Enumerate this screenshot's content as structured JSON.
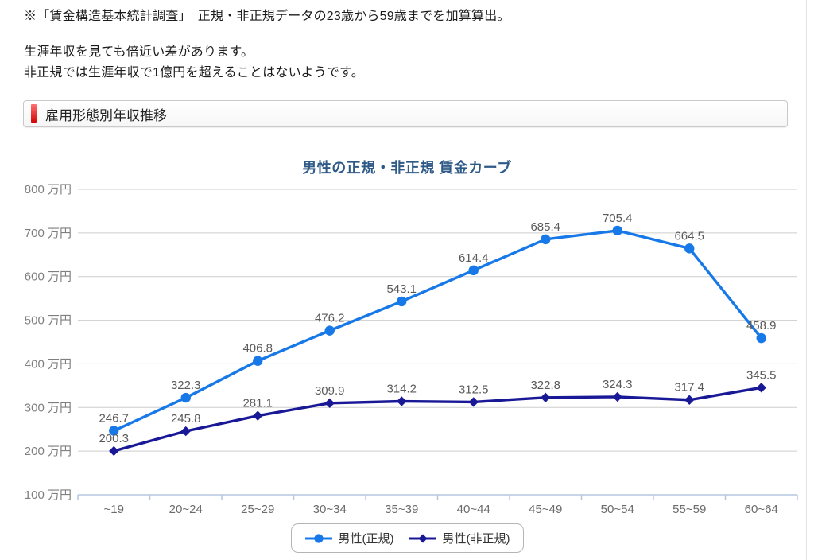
{
  "page": {
    "note": "※「賃金構造基本統計調査」　正規・非正規データの23歳から59歳までを加算算出。",
    "callout_line1": "生涯年収を見ても倍近い差があります。",
    "callout_line2": "非正規では生涯年収で1億円を超えることはないようです。",
    "section_title": "雇用形態別年収推移"
  },
  "colors": {
    "accent_red": "#cf0000",
    "title_blue": "#2f5a87",
    "grid": "#cdcdcd",
    "axis": "#b6c7dd",
    "tick_label": "#7f7f7f",
    "x_label": "#6b6b6b",
    "data_label": "#5a5a5a"
  },
  "chart_data": {
    "type": "line",
    "title": "男性の正規・非正規 賃金カーブ",
    "categories": [
      "~19",
      "20~24",
      "25~29",
      "30~34",
      "35~39",
      "40~44",
      "45~49",
      "50~54",
      "55~59",
      "60~64"
    ],
    "series": [
      {
        "name": "男性(正規)",
        "marker": "circle",
        "color": "#1778e8",
        "values": [
          246.7,
          322.3,
          406.8,
          476.2,
          543.1,
          614.4,
          685.4,
          705.4,
          664.5,
          458.9
        ]
      },
      {
        "name": "男性(非正規)",
        "marker": "diamond",
        "color": "#191997",
        "values": [
          200.3,
          245.8,
          281.1,
          309.9,
          314.2,
          312.5,
          322.8,
          324.3,
          317.4,
          345.5
        ]
      }
    ],
    "yticks": [
      100,
      200,
      300,
      400,
      500,
      600,
      700,
      800
    ],
    "ytick_suffix": "万円",
    "ylim": [
      100,
      800
    ],
    "grid": true,
    "legend_position": "bottom"
  }
}
